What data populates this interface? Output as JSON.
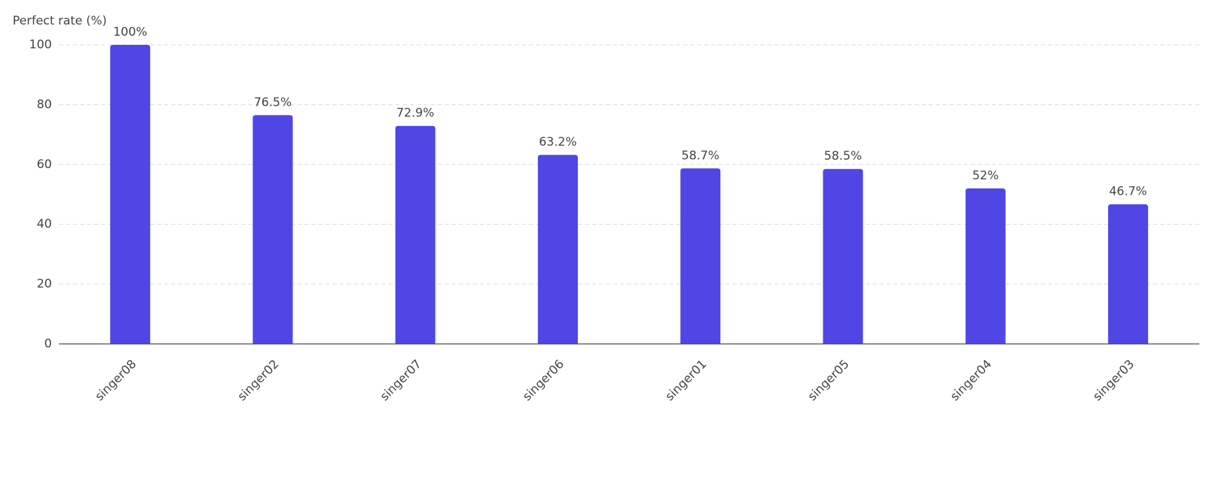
{
  "chart_data": {
    "type": "bar",
    "y_label": "Perfect rate (%)",
    "categories": [
      "singer08",
      "singer02",
      "singer07",
      "singer06",
      "singer01",
      "singer05",
      "singer04",
      "singer03"
    ],
    "values": [
      100,
      76.5,
      72.9,
      63.2,
      58.7,
      58.5,
      52,
      46.7
    ],
    "value_labels": [
      "100%",
      "76.5%",
      "72.9%",
      "63.2%",
      "58.7%",
      "58.5%",
      "52%",
      "46.7%"
    ],
    "color": "#5046e5",
    "ylim": [
      0,
      100
    ],
    "yticks": [
      0,
      20,
      40,
      60,
      80,
      100
    ],
    "grid": true
  }
}
